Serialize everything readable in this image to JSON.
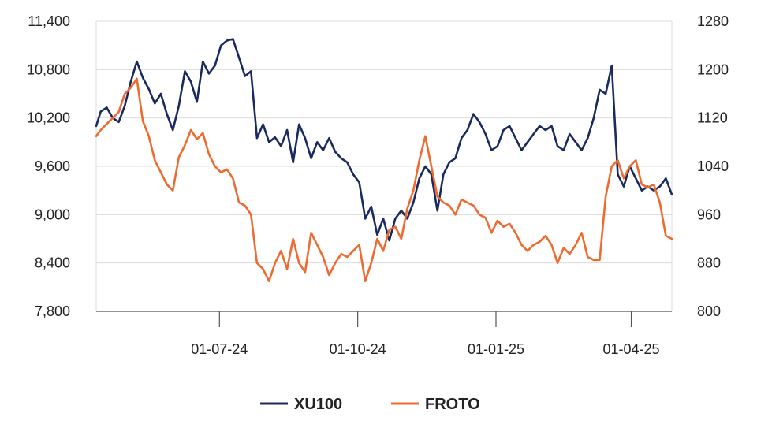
{
  "chart_data": {
    "type": "line",
    "title": "",
    "xlabel": "",
    "ylabel": "",
    "y2label": "",
    "grid": true,
    "legend_position": "bottom",
    "x_ticks": [
      "01-07-24",
      "01-10-24",
      "01-01-25",
      "01-04-25"
    ],
    "x_tick_dates": [
      "2024-07-01",
      "2024-10-01",
      "2025-01-01",
      "2025-04-01"
    ],
    "x_range": [
      "2024-04-10",
      "2025-04-28"
    ],
    "y_left": {
      "min": 7800,
      "max": 11400,
      "ticks": [
        "7,800",
        "8,400",
        "9,000",
        "9,600",
        "10,200",
        "10,800",
        "11,400"
      ]
    },
    "y_right": {
      "min": 800,
      "max": 1280,
      "ticks": [
        "800",
        "880",
        "960",
        "1040",
        "1120",
        "1200",
        "1280"
      ]
    },
    "series": [
      {
        "name": "XU100",
        "axis": "left",
        "color": "#1a2a5e",
        "points": [
          [
            "2024-04-10",
            10100
          ],
          [
            "2024-04-13",
            10280
          ],
          [
            "2024-04-17",
            10330
          ],
          [
            "2024-04-21",
            10200
          ],
          [
            "2024-04-25",
            10150
          ],
          [
            "2024-04-29",
            10350
          ],
          [
            "2024-05-03",
            10650
          ],
          [
            "2024-05-07",
            10900
          ],
          [
            "2024-05-11",
            10700
          ],
          [
            "2024-05-15",
            10560
          ],
          [
            "2024-05-19",
            10380
          ],
          [
            "2024-05-23",
            10500
          ],
          [
            "2024-05-27",
            10250
          ],
          [
            "2024-05-31",
            10050
          ],
          [
            "2024-06-04",
            10350
          ],
          [
            "2024-06-08",
            10780
          ],
          [
            "2024-06-12",
            10650
          ],
          [
            "2024-06-16",
            10400
          ],
          [
            "2024-06-20",
            10900
          ],
          [
            "2024-06-24",
            10750
          ],
          [
            "2024-06-28",
            10850
          ],
          [
            "2024-07-02",
            11100
          ],
          [
            "2024-07-06",
            11160
          ],
          [
            "2024-07-10",
            11180
          ],
          [
            "2024-07-14",
            10950
          ],
          [
            "2024-07-18",
            10720
          ],
          [
            "2024-07-22",
            10780
          ],
          [
            "2024-07-26",
            9950
          ],
          [
            "2024-07-30",
            10120
          ],
          [
            "2024-08-03",
            9900
          ],
          [
            "2024-08-07",
            9960
          ],
          [
            "2024-08-11",
            9850
          ],
          [
            "2024-08-15",
            10050
          ],
          [
            "2024-08-19",
            9650
          ],
          [
            "2024-08-23",
            10120
          ],
          [
            "2024-08-27",
            9950
          ],
          [
            "2024-08-31",
            9700
          ],
          [
            "2024-09-04",
            9900
          ],
          [
            "2024-09-08",
            9800
          ],
          [
            "2024-09-12",
            9950
          ],
          [
            "2024-09-16",
            9780
          ],
          [
            "2024-09-20",
            9700
          ],
          [
            "2024-09-24",
            9650
          ],
          [
            "2024-09-28",
            9500
          ],
          [
            "2024-10-02",
            9400
          ],
          [
            "2024-10-06",
            8950
          ],
          [
            "2024-10-10",
            9100
          ],
          [
            "2024-10-14",
            8750
          ],
          [
            "2024-10-18",
            8950
          ],
          [
            "2024-10-22",
            8680
          ],
          [
            "2024-10-26",
            8950
          ],
          [
            "2024-10-30",
            9050
          ],
          [
            "2024-11-03",
            8950
          ],
          [
            "2024-11-07",
            9150
          ],
          [
            "2024-11-11",
            9450
          ],
          [
            "2024-11-15",
            9600
          ],
          [
            "2024-11-19",
            9500
          ],
          [
            "2024-11-23",
            9050
          ],
          [
            "2024-11-27",
            9500
          ],
          [
            "2024-12-01",
            9650
          ],
          [
            "2024-12-05",
            9700
          ],
          [
            "2024-12-09",
            9950
          ],
          [
            "2024-12-13",
            10050
          ],
          [
            "2024-12-17",
            10250
          ],
          [
            "2024-12-21",
            10150
          ],
          [
            "2024-12-25",
            10000
          ],
          [
            "2024-12-29",
            9800
          ],
          [
            "2025-01-02",
            9850
          ],
          [
            "2025-01-06",
            10050
          ],
          [
            "2025-01-10",
            10100
          ],
          [
            "2025-01-14",
            9950
          ],
          [
            "2025-01-18",
            9800
          ],
          [
            "2025-01-22",
            9900
          ],
          [
            "2025-01-26",
            10000
          ],
          [
            "2025-01-30",
            10100
          ],
          [
            "2025-02-03",
            10050
          ],
          [
            "2025-02-07",
            10100
          ],
          [
            "2025-02-11",
            9850
          ],
          [
            "2025-02-15",
            9800
          ],
          [
            "2025-02-19",
            10000
          ],
          [
            "2025-02-23",
            9900
          ],
          [
            "2025-02-27",
            9800
          ],
          [
            "2025-03-03",
            9950
          ],
          [
            "2025-03-07",
            10200
          ],
          [
            "2025-03-11",
            10550
          ],
          [
            "2025-03-15",
            10500
          ],
          [
            "2025-03-19",
            10850
          ],
          [
            "2025-03-23",
            9500
          ],
          [
            "2025-03-27",
            9350
          ],
          [
            "2025-03-31",
            9600
          ],
          [
            "2025-04-04",
            9450
          ],
          [
            "2025-04-08",
            9300
          ],
          [
            "2025-04-12",
            9350
          ],
          [
            "2025-04-16",
            9300
          ],
          [
            "2025-04-20",
            9350
          ],
          [
            "2025-04-24",
            9450
          ],
          [
            "2025-04-28",
            9250
          ]
        ]
      },
      {
        "name": "FROTO",
        "axis": "right",
        "color": "#ee6b2f",
        "points": [
          [
            "2024-04-10",
            1090
          ],
          [
            "2024-04-13",
            1100
          ],
          [
            "2024-04-17",
            1110
          ],
          [
            "2024-04-21",
            1120
          ],
          [
            "2024-04-25",
            1130
          ],
          [
            "2024-04-29",
            1160
          ],
          [
            "2024-05-03",
            1170
          ],
          [
            "2024-05-07",
            1185
          ],
          [
            "2024-05-11",
            1115
          ],
          [
            "2024-05-15",
            1090
          ],
          [
            "2024-05-19",
            1050
          ],
          [
            "2024-05-23",
            1030
          ],
          [
            "2024-05-27",
            1010
          ],
          [
            "2024-05-31",
            1000
          ],
          [
            "2024-06-04",
            1055
          ],
          [
            "2024-06-08",
            1075
          ],
          [
            "2024-06-12",
            1100
          ],
          [
            "2024-06-16",
            1085
          ],
          [
            "2024-06-20",
            1095
          ],
          [
            "2024-06-24",
            1060
          ],
          [
            "2024-06-28",
            1040
          ],
          [
            "2024-07-02",
            1030
          ],
          [
            "2024-07-06",
            1035
          ],
          [
            "2024-07-10",
            1020
          ],
          [
            "2024-07-14",
            980
          ],
          [
            "2024-07-18",
            975
          ],
          [
            "2024-07-22",
            960
          ],
          [
            "2024-07-26",
            880
          ],
          [
            "2024-07-30",
            870
          ],
          [
            "2024-08-03",
            850
          ],
          [
            "2024-08-07",
            880
          ],
          [
            "2024-08-11",
            900
          ],
          [
            "2024-08-15",
            870
          ],
          [
            "2024-08-19",
            920
          ],
          [
            "2024-08-23",
            880
          ],
          [
            "2024-08-27",
            865
          ],
          [
            "2024-08-31",
            930
          ],
          [
            "2024-09-04",
            910
          ],
          [
            "2024-09-08",
            890
          ],
          [
            "2024-09-12",
            860
          ],
          [
            "2024-09-16",
            880
          ],
          [
            "2024-09-20",
            895
          ],
          [
            "2024-09-24",
            890
          ],
          [
            "2024-09-28",
            900
          ],
          [
            "2024-10-02",
            910
          ],
          [
            "2024-10-06",
            850
          ],
          [
            "2024-10-10",
            880
          ],
          [
            "2024-10-14",
            920
          ],
          [
            "2024-10-18",
            900
          ],
          [
            "2024-10-22",
            935
          ],
          [
            "2024-10-26",
            940
          ],
          [
            "2024-10-30",
            920
          ],
          [
            "2024-11-03",
            970
          ],
          [
            "2024-11-07",
            1000
          ],
          [
            "2024-11-11",
            1050
          ],
          [
            "2024-11-15",
            1090
          ],
          [
            "2024-11-19",
            1040
          ],
          [
            "2024-11-23",
            990
          ],
          [
            "2024-11-27",
            980
          ],
          [
            "2024-12-01",
            975
          ],
          [
            "2024-12-05",
            960
          ],
          [
            "2024-12-09",
            985
          ],
          [
            "2024-12-13",
            980
          ],
          [
            "2024-12-17",
            975
          ],
          [
            "2024-12-21",
            960
          ],
          [
            "2024-12-25",
            955
          ],
          [
            "2024-12-29",
            930
          ],
          [
            "2025-01-02",
            950
          ],
          [
            "2025-01-06",
            940
          ],
          [
            "2025-01-10",
            945
          ],
          [
            "2025-01-14",
            930
          ],
          [
            "2025-01-18",
            910
          ],
          [
            "2025-01-22",
            900
          ],
          [
            "2025-01-26",
            910
          ],
          [
            "2025-01-30",
            915
          ],
          [
            "2025-02-03",
            925
          ],
          [
            "2025-02-07",
            910
          ],
          [
            "2025-02-11",
            880
          ],
          [
            "2025-02-15",
            905
          ],
          [
            "2025-02-19",
            895
          ],
          [
            "2025-02-23",
            910
          ],
          [
            "2025-02-27",
            930
          ],
          [
            "2025-03-03",
            890
          ],
          [
            "2025-03-07",
            885
          ],
          [
            "2025-03-11",
            885
          ],
          [
            "2025-03-15",
            990
          ],
          [
            "2025-03-19",
            1040
          ],
          [
            "2025-03-23",
            1050
          ],
          [
            "2025-03-27",
            1020
          ],
          [
            "2025-03-31",
            1040
          ],
          [
            "2025-04-04",
            1050
          ],
          [
            "2025-04-08",
            1010
          ],
          [
            "2025-04-12",
            1005
          ],
          [
            "2025-04-16",
            1010
          ],
          [
            "2025-04-20",
            980
          ],
          [
            "2025-04-24",
            925
          ],
          [
            "2025-04-28",
            920
          ]
        ]
      }
    ]
  }
}
